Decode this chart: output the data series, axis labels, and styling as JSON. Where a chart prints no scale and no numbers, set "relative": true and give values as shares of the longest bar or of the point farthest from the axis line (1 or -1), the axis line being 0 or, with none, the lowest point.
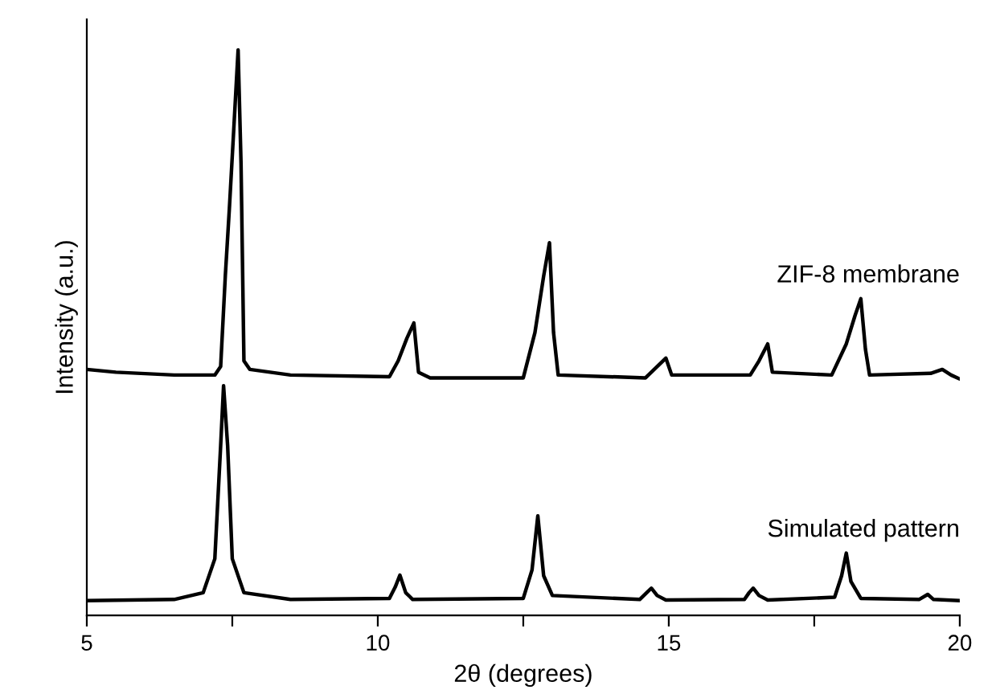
{
  "chart_data": {
    "type": "line",
    "relative": true,
    "xlabel": "2θ (degrees)",
    "ylabel": "Intensity (a.u.)",
    "xlim": [
      5,
      20
    ],
    "xticks": [
      5,
      {
        "value": 7.5,
        "label": null
      },
      10,
      {
        "value": 12.5,
        "label": null
      },
      15,
      {
        "value": 17.5,
        "label": null
      },
      20
    ],
    "tick_labels": "x",
    "grid": false,
    "legend": false,
    "marker": "none",
    "line_style": "solid",
    "series": [
      {
        "name": "ZIF-8 membrane",
        "color": "#000000",
        "x": [
          5,
          5.5,
          6.5,
          7.2,
          7.3,
          7.38,
          7.45,
          7.52,
          7.6,
          7.65,
          7.7,
          7.8,
          8.5,
          10.2,
          10.35,
          10.5,
          10.62,
          10.7,
          10.9,
          12.5,
          12.7,
          12.85,
          12.95,
          13.02,
          13.1,
          14.6,
          14.8,
          14.95,
          15.05,
          16.4,
          16.55,
          16.7,
          16.78,
          17.8,
          18.05,
          18.2,
          18.3,
          18.38,
          18.45,
          19.5,
          19.7,
          19.85,
          20
        ],
        "values": [
          0.435,
          0.43,
          0.425,
          0.425,
          0.44,
          0.6,
          0.72,
          0.85,
          1.0,
          0.8,
          0.45,
          0.435,
          0.425,
          0.422,
          0.45,
          0.49,
          0.517,
          0.43,
          0.42,
          0.42,
          0.5,
          0.6,
          0.659,
          0.5,
          0.425,
          0.42,
          0.44,
          0.455,
          0.425,
          0.425,
          0.45,
          0.48,
          0.43,
          0.425,
          0.48,
          0.53,
          0.56,
          0.47,
          0.425,
          0.428,
          0.435,
          0.425,
          0.418
        ]
      },
      {
        "name": "Simulated pattern",
        "color": "#000000",
        "x": [
          5,
          6.5,
          7.0,
          7.2,
          7.3,
          7.35,
          7.42,
          7.5,
          7.7,
          8.5,
          10.2,
          10.3,
          10.38,
          10.48,
          10.6,
          12.5,
          12.65,
          12.75,
          12.85,
          13.0,
          14.5,
          14.62,
          14.7,
          14.8,
          14.95,
          16.3,
          16.38,
          16.45,
          16.55,
          16.7,
          17.85,
          17.97,
          18.05,
          18.13,
          18.3,
          19.3,
          19.45,
          19.55,
          20
        ],
        "values": [
          0.026,
          0.028,
          0.04,
          0.1,
          0.3,
          0.406,
          0.3,
          0.1,
          0.04,
          0.028,
          0.03,
          0.05,
          0.071,
          0.04,
          0.028,
          0.03,
          0.08,
          0.176,
          0.07,
          0.035,
          0.028,
          0.04,
          0.048,
          0.035,
          0.027,
          0.028,
          0.04,
          0.048,
          0.035,
          0.027,
          0.032,
          0.07,
          0.11,
          0.06,
          0.03,
          0.028,
          0.037,
          0.028,
          0.026
        ]
      }
    ]
  }
}
